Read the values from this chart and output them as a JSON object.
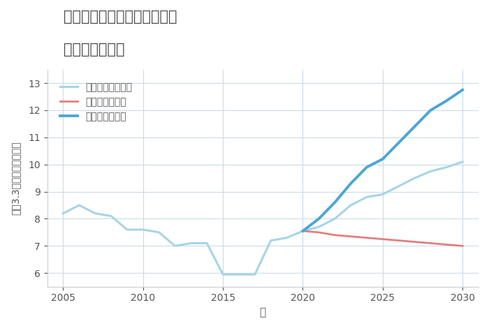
{
  "title_line1": "福岡県みやま市高田町岩津の",
  "title_line2": "土地の価格推移",
  "xlabel": "年",
  "ylabel": "平（3.3㎡）単価（万円）",
  "xlim": [
    2004,
    2031
  ],
  "ylim": [
    5.5,
    13.5
  ],
  "yticks": [
    6,
    7,
    8,
    9,
    10,
    11,
    12,
    13
  ],
  "xticks": [
    2005,
    2010,
    2015,
    2020,
    2025,
    2030
  ],
  "good_scenario": {
    "label": "グッドシナリオ",
    "color": "#4da6d4",
    "linewidth": 2.8,
    "x": [
      2005,
      2006,
      2007,
      2008,
      2009,
      2010,
      2011,
      2012,
      2013,
      2014,
      2015,
      2016,
      2017,
      2018,
      2019,
      2020,
      2021,
      2022,
      2023,
      2024,
      2025,
      2026,
      2027,
      2028,
      2029,
      2030
    ],
    "y": [
      null,
      null,
      null,
      null,
      null,
      null,
      null,
      null,
      null,
      null,
      null,
      null,
      null,
      null,
      null,
      7.55,
      8.0,
      8.6,
      9.3,
      9.9,
      10.2,
      10.8,
      11.4,
      12.0,
      12.35,
      12.75
    ]
  },
  "bad_scenario": {
    "label": "バッドシナリオ",
    "color": "#e08080",
    "linewidth": 2.0,
    "x": [
      2020,
      2021,
      2022,
      2023,
      2024,
      2025,
      2026,
      2027,
      2028,
      2029,
      2030
    ],
    "y": [
      7.55,
      7.5,
      7.4,
      7.35,
      7.3,
      7.25,
      7.2,
      7.15,
      7.1,
      7.05,
      7.0
    ]
  },
  "normal_scenario": {
    "label": "ノーマルシナリオ",
    "color": "#a8d4e6",
    "linewidth": 2.2,
    "x": [
      2005,
      2006,
      2007,
      2008,
      2009,
      2010,
      2011,
      2012,
      2013,
      2014,
      2015,
      2016,
      2017,
      2018,
      2019,
      2020,
      2021,
      2022,
      2023,
      2024,
      2025,
      2026,
      2027,
      2028,
      2029,
      2030
    ],
    "y": [
      8.2,
      8.5,
      8.2,
      8.1,
      7.6,
      7.6,
      7.5,
      7.0,
      7.1,
      7.1,
      5.95,
      5.95,
      5.95,
      7.2,
      7.3,
      7.55,
      7.7,
      8.0,
      8.5,
      8.8,
      8.9,
      9.2,
      9.5,
      9.75,
      9.9,
      10.1
    ]
  },
  "background_color": "#ffffff",
  "grid_color": "#c8dce8",
  "title_color": "#444444",
  "legend_text_color": "#555555"
}
